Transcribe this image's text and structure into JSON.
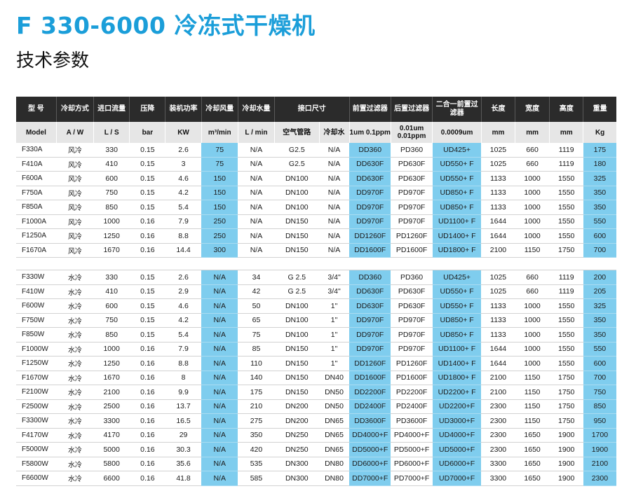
{
  "title": "F 330-6000 冷冻式干燥机",
  "subtitle": "技术参数",
  "header_row1": [
    "型 号",
    "冷却方式",
    "进口流量",
    "压降",
    "装机功率",
    "冷却风量",
    "冷却水量",
    "接口尺寸",
    "前置过滤器",
    "后置过滤器",
    "二合一前置过滤器",
    "长度",
    "宽度",
    "高度",
    "重量"
  ],
  "header_row2": [
    "Model",
    "A / W",
    "L / S",
    "bar",
    "KW",
    "m³/min",
    "L / min",
    "空气管路",
    "冷却水",
    "1um 0.1ppm",
    "0.01um 0.01ppm",
    "0.0009um",
    "mm",
    "mm",
    "mm",
    "Kg"
  ],
  "air_cooled": [
    [
      "F330A",
      "风冷",
      "330",
      "0.15",
      "2.6",
      "75",
      "N/A",
      "G2.5",
      "N/A",
      "DD360",
      "PD360",
      "UD425+",
      "1025",
      "660",
      "1119",
      "175"
    ],
    [
      "F410A",
      "风冷",
      "410",
      "0.15",
      "3",
      "75",
      "N/A",
      "G2.5",
      "N/A",
      "DD630F",
      "PD630F",
      "UD550+ F",
      "1025",
      "660",
      "1119",
      "180"
    ],
    [
      "F600A",
      "风冷",
      "600",
      "0.15",
      "4.6",
      "150",
      "N/A",
      "DN100",
      "N/A",
      "DD630F",
      "PD630F",
      "UD550+ F",
      "1133",
      "1000",
      "1550",
      "325"
    ],
    [
      "F750A",
      "风冷",
      "750",
      "0.15",
      "4.2",
      "150",
      "N/A",
      "DN100",
      "N/A",
      "DD970F",
      "PD970F",
      "UD850+ F",
      "1133",
      "1000",
      "1550",
      "350"
    ],
    [
      "F850A",
      "风冷",
      "850",
      "0.15",
      "5.4",
      "150",
      "N/A",
      "DN100",
      "N/A",
      "DD970F",
      "PD970F",
      "UD850+ F",
      "1133",
      "1000",
      "1550",
      "350"
    ],
    [
      "F1000A",
      "风冷",
      "1000",
      "0.16",
      "7.9",
      "250",
      "N/A",
      "DN150",
      "N/A",
      "DD970F",
      "PD970F",
      "UD1100+ F",
      "1644",
      "1000",
      "1550",
      "550"
    ],
    [
      "F1250A",
      "风冷",
      "1250",
      "0.16",
      "8.8",
      "250",
      "N/A",
      "DN150",
      "N/A",
      "DD1260F",
      "PD1260F",
      "UD1400+ F",
      "1644",
      "1000",
      "1550",
      "600"
    ],
    [
      "F1670A",
      "风冷",
      "1670",
      "0.16",
      "14.4",
      "300",
      "N/A",
      "DN150",
      "N/A",
      "DD1600F",
      "PD1600F",
      "UD1800+ F",
      "2100",
      "1150",
      "1750",
      "700"
    ]
  ],
  "water_cooled": [
    [
      "F330W",
      "水冷",
      "330",
      "0.15",
      "2.6",
      "N/A",
      "34",
      "G 2.5",
      "3/4\"",
      "DD360",
      "PD360",
      "UD425+",
      "1025",
      "660",
      "1119",
      "200"
    ],
    [
      "F410W",
      "水冷",
      "410",
      "0.15",
      "2.9",
      "N/A",
      "42",
      "G 2.5",
      "3/4\"",
      "DD630F",
      "PD630F",
      "UD550+ F",
      "1025",
      "660",
      "1119",
      "205"
    ],
    [
      "F600W",
      "水冷",
      "600",
      "0.15",
      "4.6",
      "N/A",
      "50",
      "DN100",
      "1\"",
      "DD630F",
      "PD630F",
      "UD550+ F",
      "1133",
      "1000",
      "1550",
      "325"
    ],
    [
      "F750W",
      "水冷",
      "750",
      "0.15",
      "4.2",
      "N/A",
      "65",
      "DN100",
      "1\"",
      "DD970F",
      "PD970F",
      "UD850+ F",
      "1133",
      "1000",
      "1550",
      "350"
    ],
    [
      "F850W",
      "水冷",
      "850",
      "0.15",
      "5.4",
      "N/A",
      "75",
      "DN100",
      "1\"",
      "DD970F",
      "PD970F",
      "UD850+ F",
      "1133",
      "1000",
      "1550",
      "350"
    ],
    [
      "F1000W",
      "水冷",
      "1000",
      "0.16",
      "7.9",
      "N/A",
      "85",
      "DN150",
      "1\"",
      "DD970F",
      "PD970F",
      "UD1100+ F",
      "1644",
      "1000",
      "1550",
      "550"
    ],
    [
      "F1250W",
      "水冷",
      "1250",
      "0.16",
      "8.8",
      "N/A",
      "110",
      "DN150",
      "1\"",
      "DD1260F",
      "PD1260F",
      "UD1400+ F",
      "1644",
      "1000",
      "1550",
      "600"
    ],
    [
      "F1670W",
      "水冷",
      "1670",
      "0.16",
      "8",
      "N/A",
      "140",
      "DN150",
      "DN40",
      "DD1600F",
      "PD1600F",
      "UD1800+ F",
      "2100",
      "1150",
      "1750",
      "700"
    ],
    [
      "F2100W",
      "水冷",
      "2100",
      "0.16",
      "9.9",
      "N/A",
      "175",
      "DN150",
      "DN50",
      "DD2200F",
      "PD2200F",
      "UD2200+ F",
      "2100",
      "1150",
      "1750",
      "750"
    ],
    [
      "F2500W",
      "水冷",
      "2500",
      "0.16",
      "13.7",
      "N/A",
      "210",
      "DN200",
      "DN50",
      "DD2400F",
      "PD2400F",
      "UD2200+F",
      "2300",
      "1150",
      "1750",
      "850"
    ],
    [
      "F3300W",
      "水冷",
      "3300",
      "0.16",
      "16.5",
      "N/A",
      "275",
      "DN200",
      "DN65",
      "DD3600F",
      "PD3600F",
      "UD3000+F",
      "2300",
      "1150",
      "1750",
      "950"
    ],
    [
      "F4170W",
      "水冷",
      "4170",
      "0.16",
      "29",
      "N/A",
      "350",
      "DN250",
      "DN65",
      "DD4000+F",
      "PD4000+F",
      "UD4000+F",
      "2300",
      "1650",
      "1900",
      "1700"
    ],
    [
      "F5000W",
      "水冷",
      "5000",
      "0.16",
      "30.3",
      "N/A",
      "420",
      "DN250",
      "DN65",
      "DD5000+F",
      "PD5000+F",
      "UD5000+F",
      "2300",
      "1650",
      "1900",
      "1900"
    ],
    [
      "F5800W",
      "水冷",
      "5800",
      "0.16",
      "35.6",
      "N/A",
      "535",
      "DN300",
      "DN80",
      "DD6000+F",
      "PD6000+F",
      "UD6000+F",
      "3300",
      "1650",
      "1900",
      "2100"
    ],
    [
      "F6600W",
      "水冷",
      "6600",
      "0.16",
      "41.8",
      "N/A",
      "585",
      "DN300",
      "DN80",
      "DD7000+F",
      "PD7000+F",
      "UD7000+F",
      "3300",
      "1650",
      "1900",
      "2300"
    ]
  ],
  "colors": {
    "title": "#1b9ed9",
    "header_dark": "#2b2b2b",
    "header_light": "#e6e6e6",
    "highlight_column": "#7fcdee"
  }
}
